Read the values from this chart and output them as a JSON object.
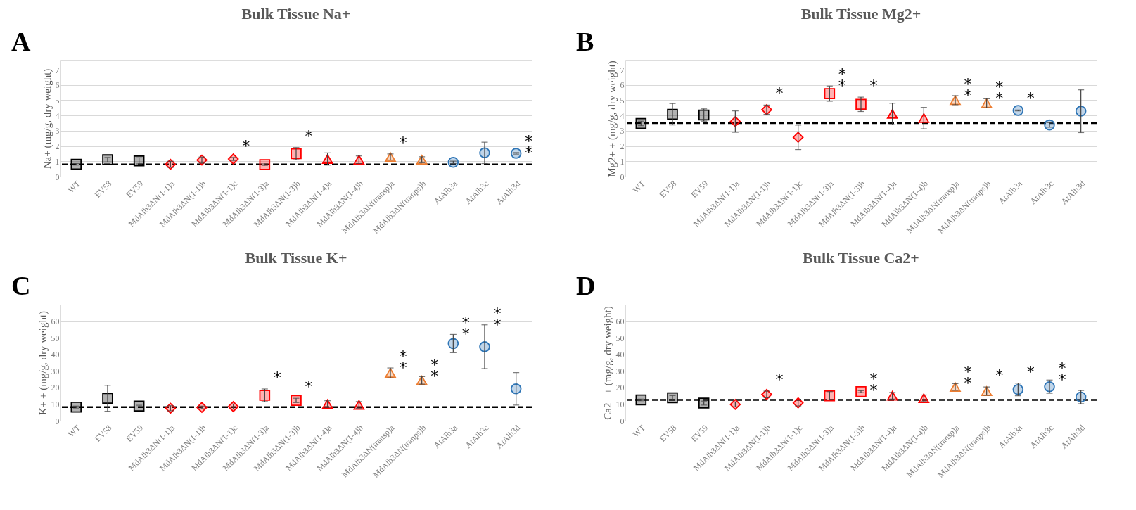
{
  "chart_data": [
    {
      "type": "scatter",
      "title": "Bulk Tissue Na+",
      "ylabel": "Na+ (mg/g, dry weight)",
      "categories": [
        "WT",
        "EV58",
        "EV59",
        "MdAlb3ΔN(1-1)a",
        "MdAlb3ΔN(1-1)b",
        "MdAlb3ΔN(1-1)c",
        "MdAlb3ΔN(1-3)a",
        "MdAlb3ΔN(1-3)b",
        "MdAlb3ΔN(1-4)a",
        "MdAlb3ΔN(1-4)b",
        "MdAlb3ΔN(transp)a",
        "MdAlb3ΔN(tranps)b",
        "AtAlb3a",
        "AtAlb3c",
        "AtAlb3d"
      ],
      "series": [
        {
          "color": "#000000",
          "marker": "square",
          "values": [
            0.8,
            1.1,
            1.03,
            null,
            null,
            null,
            null,
            null,
            null,
            null,
            null,
            null,
            null,
            null,
            null
          ],
          "errors": [
            0.05,
            0.15,
            0.2,
            null,
            null,
            null,
            null,
            null,
            null,
            null,
            null,
            null,
            null,
            null,
            null
          ]
        },
        {
          "color": "#ff0000",
          "marker": "diamond",
          "values": [
            null,
            null,
            null,
            0.8,
            1.08,
            1.15,
            null,
            null,
            null,
            null,
            null,
            null,
            null,
            null,
            null
          ],
          "errors": [
            null,
            null,
            null,
            0.2,
            0.2,
            0.1,
            null,
            null,
            null,
            null,
            null,
            null,
            null,
            null,
            null
          ],
          "value_labels": [
            null,
            null,
            null,
            null,
            null,
            "*",
            null,
            null,
            null,
            null,
            null,
            null,
            null,
            null,
            null
          ]
        },
        {
          "color": "#ff0000",
          "marker": "square",
          "values": [
            null,
            null,
            null,
            null,
            null,
            null,
            0.78,
            1.5,
            null,
            null,
            null,
            null,
            null,
            null,
            null
          ],
          "errors": [
            null,
            null,
            null,
            null,
            null,
            null,
            0.05,
            0.4,
            null,
            null,
            null,
            null,
            null,
            null,
            null
          ],
          "value_labels": [
            null,
            null,
            null,
            null,
            null,
            null,
            null,
            "*",
            null,
            null,
            null,
            null,
            null,
            null,
            null
          ]
        },
        {
          "color": "#ff0000",
          "marker": "triangle",
          "values": [
            null,
            null,
            null,
            null,
            null,
            null,
            null,
            null,
            1.15,
            1.1,
            null,
            null,
            null,
            null,
            null
          ],
          "errors": [
            null,
            null,
            null,
            null,
            null,
            null,
            null,
            null,
            0.4,
            0.25,
            null,
            null,
            null,
            null,
            null
          ]
        },
        {
          "color": "#ed7d31",
          "marker": "triangle",
          "values": [
            null,
            null,
            null,
            null,
            null,
            null,
            null,
            null,
            null,
            null,
            1.28,
            1.1,
            null,
            null,
            null
          ],
          "errors": [
            null,
            null,
            null,
            null,
            null,
            null,
            null,
            null,
            null,
            null,
            0.2,
            0.2,
            null,
            null,
            null
          ],
          "value_labels": [
            null,
            null,
            null,
            null,
            null,
            null,
            null,
            null,
            null,
            null,
            "*",
            null,
            null,
            null,
            null
          ]
        },
        {
          "color": "#2e75b6",
          "marker": "circle",
          "values": [
            null,
            null,
            null,
            null,
            null,
            null,
            null,
            null,
            null,
            null,
            null,
            null,
            0.93,
            1.55,
            1.52
          ],
          "errors": [
            null,
            null,
            null,
            null,
            null,
            null,
            null,
            null,
            null,
            null,
            null,
            null,
            0.08,
            0.7,
            0.05
          ],
          "value_labels": [
            null,
            null,
            null,
            null,
            null,
            null,
            null,
            null,
            null,
            null,
            null,
            null,
            null,
            null,
            "*\n*"
          ]
        }
      ],
      "ylim": [
        0,
        7.6
      ],
      "yticks": [
        0,
        1,
        2,
        3,
        4,
        5,
        6,
        7
      ],
      "grid": "y",
      "legend": false,
      "ref_lines": [
        {
          "axis": "y",
          "value": 0.8,
          "line_style": "dashed",
          "color": "#000000"
        }
      ],
      "annotations": [
        "A"
      ]
    },
    {
      "type": "scatter",
      "title": "Bulk Tissue Mg2+",
      "ylabel": "Mg2+ + (mg/g, dry weight)",
      "categories": [
        "WT",
        "EV58",
        "EV59",
        "MdAlb3ΔN(1-1)a",
        "MdAlb3ΔN(1-1)b",
        "MdAlb3ΔN(1-1)c",
        "MdAlb3ΔN(1-3)a",
        "MdAlb3ΔN(1-3)b",
        "MdAlb3ΔN(1-4)a",
        "MdAlb3ΔN(1-4)b",
        "MdAlb3ΔN(transp)a",
        "MdAlb3ΔN(tranps)b",
        "AtAlb3a",
        "AtAlb3c",
        "AtAlb3d"
      ],
      "series": [
        {
          "color": "#000000",
          "marker": "square",
          "values": [
            3.48,
            4.08,
            4.03,
            null,
            null,
            null,
            null,
            null,
            null,
            null,
            null,
            null,
            null,
            null,
            null
          ],
          "errors": [
            0.15,
            0.7,
            0.4,
            null,
            null,
            null,
            null,
            null,
            null,
            null,
            null,
            null,
            null,
            null,
            null
          ]
        },
        {
          "color": "#ff0000",
          "marker": "diamond",
          "values": [
            null,
            null,
            null,
            3.6,
            4.38,
            2.57,
            null,
            null,
            null,
            null,
            null,
            null,
            null,
            null,
            null
          ],
          "errors": [
            null,
            null,
            null,
            0.7,
            0.3,
            0.8,
            null,
            null,
            null,
            null,
            null,
            null,
            null,
            null,
            null
          ],
          "value_labels": [
            null,
            null,
            null,
            null,
            "*",
            null,
            null,
            null,
            null,
            null,
            null,
            null,
            null,
            null,
            null
          ]
        },
        {
          "color": "#ff0000",
          "marker": "square",
          "values": [
            null,
            null,
            null,
            null,
            null,
            null,
            5.43,
            4.73,
            null,
            null,
            null,
            null,
            null,
            null,
            null
          ],
          "errors": [
            null,
            null,
            null,
            null,
            null,
            null,
            0.5,
            0.47,
            null,
            null,
            null,
            null,
            null,
            null,
            null
          ],
          "value_labels": [
            null,
            null,
            null,
            null,
            null,
            null,
            "*\n*",
            "*",
            null,
            null,
            null,
            null,
            null,
            null,
            null
          ]
        },
        {
          "color": "#ff0000",
          "marker": "triangle",
          "values": [
            null,
            null,
            null,
            null,
            null,
            null,
            null,
            null,
            4.1,
            3.83,
            null,
            null,
            null,
            null,
            null
          ],
          "errors": [
            null,
            null,
            null,
            null,
            null,
            null,
            null,
            null,
            0.7,
            0.7,
            null,
            null,
            null,
            null,
            null
          ]
        },
        {
          "color": "#ed7d31",
          "marker": "triangle",
          "values": [
            null,
            null,
            null,
            null,
            null,
            null,
            null,
            null,
            null,
            null,
            5.0,
            4.8,
            null,
            null,
            null
          ],
          "errors": [
            null,
            null,
            null,
            null,
            null,
            null,
            null,
            null,
            null,
            null,
            0.3,
            0.3,
            null,
            null,
            null
          ],
          "value_labels": [
            null,
            null,
            null,
            null,
            null,
            null,
            null,
            null,
            null,
            null,
            "*\n*",
            "*\n*",
            null,
            null,
            null
          ]
        },
        {
          "color": "#2e75b6",
          "marker": "circle",
          "values": [
            null,
            null,
            null,
            null,
            null,
            null,
            null,
            null,
            null,
            null,
            null,
            null,
            4.33,
            3.38,
            4.28
          ],
          "errors": [
            null,
            null,
            null,
            null,
            null,
            null,
            null,
            null,
            null,
            null,
            null,
            null,
            0.03,
            0.15,
            1.4
          ],
          "value_labels": [
            null,
            null,
            null,
            null,
            null,
            null,
            null,
            null,
            null,
            null,
            null,
            null,
            "*",
            null,
            null
          ]
        }
      ],
      "ylim": [
        0,
        7.6
      ],
      "yticks": [
        0,
        1,
        2,
        3,
        4,
        5,
        6,
        7
      ],
      "grid": "y",
      "legend": false,
      "ref_lines": [
        {
          "axis": "y",
          "value": 3.5,
          "line_style": "dashed",
          "color": "#000000"
        }
      ],
      "annotations": [
        "B"
      ]
    },
    {
      "type": "scatter",
      "title": "Bulk Tissue K+",
      "ylabel": "K+ + (mg/g, dry weight)",
      "categories": [
        "WT",
        "EV58",
        "EV59",
        "MdAlb3ΔN(1-1)a",
        "MdAlb3ΔN(1-1)b",
        "MdAlb3ΔN(1-1)c",
        "MdAlb3ΔN(1-3)a",
        "MdAlb3ΔN(1-3)b",
        "MdAlb3ΔN(1-4)a",
        "MdAlb3ΔN(1-4)b",
        "MdAlb3ΔN(transp)a",
        "MdAlb3ΔN(tranps)b",
        "AtAlb3a",
        "AtAlb3c",
        "AtAlb3d"
      ],
      "series": [
        {
          "color": "#000000",
          "marker": "square",
          "values": [
            8.2,
            13.5,
            8.8,
            null,
            null,
            null,
            null,
            null,
            null,
            null,
            null,
            null,
            null,
            null,
            null
          ],
          "errors": [
            0.6,
            7.8,
            0.5,
            null,
            null,
            null,
            null,
            null,
            null,
            null,
            null,
            null,
            null,
            null,
            null
          ]
        },
        {
          "color": "#ff0000",
          "marker": "diamond",
          "values": [
            null,
            null,
            null,
            7.5,
            8.0,
            8.5,
            null,
            null,
            null,
            null,
            null,
            null,
            null,
            null,
            null
          ],
          "errors": [
            null,
            null,
            null,
            1.5,
            0.8,
            1.5,
            null,
            null,
            null,
            null,
            null,
            null,
            null,
            null,
            null
          ]
        },
        {
          "color": "#ff0000",
          "marker": "square",
          "values": [
            null,
            null,
            null,
            null,
            null,
            null,
            15.3,
            12.2,
            null,
            null,
            null,
            null,
            null,
            null,
            null
          ],
          "errors": [
            null,
            null,
            null,
            null,
            null,
            null,
            3.8,
            1.3,
            null,
            null,
            null,
            null,
            null,
            null,
            null
          ],
          "value_labels": [
            null,
            null,
            null,
            null,
            null,
            null,
            "*",
            "*",
            null,
            null,
            null,
            null,
            null,
            null,
            null
          ]
        },
        {
          "color": "#ff0000",
          "marker": "triangle",
          "values": [
            null,
            null,
            null,
            null,
            null,
            null,
            null,
            null,
            10,
            9.5,
            null,
            null,
            null,
            null,
            null
          ],
          "errors": [
            null,
            null,
            null,
            null,
            null,
            null,
            null,
            null,
            2,
            2,
            null,
            null,
            null,
            null,
            null
          ]
        },
        {
          "color": "#ed7d31",
          "marker": "triangle",
          "values": [
            null,
            null,
            null,
            null,
            null,
            null,
            null,
            null,
            null,
            null,
            28.8,
            24.3,
            null,
            null,
            null
          ],
          "errors": [
            null,
            null,
            null,
            null,
            null,
            null,
            null,
            null,
            null,
            null,
            3,
            2.3,
            null,
            null,
            null
          ],
          "value_labels": [
            null,
            null,
            null,
            null,
            null,
            null,
            null,
            null,
            null,
            null,
            "*\n*",
            "*\n*",
            null,
            null,
            null
          ]
        },
        {
          "color": "#2e75b6",
          "marker": "circle",
          "values": [
            null,
            null,
            null,
            null,
            null,
            null,
            null,
            null,
            null,
            null,
            null,
            null,
            46.5,
            44.6,
            19.2
          ],
          "errors": [
            null,
            null,
            null,
            null,
            null,
            null,
            null,
            null,
            null,
            null,
            null,
            null,
            5.5,
            13.2,
            9.8
          ],
          "value_labels": [
            null,
            null,
            null,
            null,
            null,
            null,
            null,
            null,
            null,
            null,
            null,
            null,
            "*\n*",
            "*\n*",
            null
          ]
        }
      ],
      "ylim": [
        0,
        70
      ],
      "yticks": [
        0,
        10,
        20,
        30,
        40,
        50,
        60
      ],
      "grid": "y",
      "legend": false,
      "ref_lines": [
        {
          "axis": "y",
          "value": 8.2,
          "line_style": "dashed",
          "color": "#000000"
        }
      ],
      "annotations": [
        "C"
      ]
    },
    {
      "type": "scatter",
      "title": "Bulk Tissue Ca2+",
      "ylabel": "Ca2+ + (mg/g, dry weight)",
      "categories": [
        "WT",
        "EV58",
        "EV59",
        "MdAlb3ΔN(1-1)a",
        "MdAlb3ΔN(1-1)b",
        "MdAlb3ΔN(1-1)c",
        "MdAlb3ΔN(1-3)a",
        "MdAlb3ΔN(1-3)b",
        "MdAlb3ΔN(1-4)a",
        "MdAlb3ΔN(1-4)b",
        "MdAlb3ΔN(transp)a",
        "MdAlb3ΔN(tranps)b",
        "AtAlb3a",
        "AtAlb3c",
        "AtAlb3d"
      ],
      "series": [
        {
          "color": "#000000",
          "marker": "square",
          "values": [
            12.5,
            13.8,
            10.6,
            null,
            null,
            null,
            null,
            null,
            null,
            null,
            null,
            null,
            null,
            null,
            null
          ],
          "errors": [
            0.5,
            1.3,
            1.2,
            null,
            null,
            null,
            null,
            null,
            null,
            null,
            null,
            null,
            null,
            null,
            null
          ]
        },
        {
          "color": "#ff0000",
          "marker": "diamond",
          "values": [
            null,
            null,
            null,
            9.8,
            15.8,
            10.7,
            null,
            null,
            null,
            null,
            null,
            null,
            null,
            null,
            null
          ],
          "errors": [
            null,
            null,
            null,
            1.5,
            2,
            1.8,
            null,
            null,
            null,
            null,
            null,
            null,
            null,
            null,
            null
          ],
          "value_labels": [
            null,
            null,
            null,
            null,
            "*",
            null,
            null,
            null,
            null,
            null,
            null,
            null,
            null,
            null,
            null
          ]
        },
        {
          "color": "#ff0000",
          "marker": "square",
          "values": [
            null,
            null,
            null,
            null,
            null,
            null,
            15,
            17.5,
            null,
            null,
            null,
            null,
            null,
            null,
            null
          ],
          "errors": [
            null,
            null,
            null,
            null,
            null,
            null,
            2.5,
            0.6,
            null,
            null,
            null,
            null,
            null,
            null,
            null
          ],
          "value_labels": [
            null,
            null,
            null,
            null,
            null,
            null,
            null,
            "*\n*",
            null,
            null,
            null,
            null,
            null,
            null,
            null
          ]
        },
        {
          "color": "#ff0000",
          "marker": "triangle",
          "values": [
            null,
            null,
            null,
            null,
            null,
            null,
            null,
            null,
            15,
            13.5,
            null,
            null,
            null,
            null,
            null
          ],
          "errors": [
            null,
            null,
            null,
            null,
            null,
            null,
            null,
            null,
            2,
            2,
            null,
            null,
            null,
            null,
            null
          ]
        },
        {
          "color": "#ed7d31",
          "marker": "triangle",
          "values": [
            null,
            null,
            null,
            null,
            null,
            null,
            null,
            null,
            null,
            null,
            20.3,
            17.8,
            null,
            null,
            null
          ],
          "errors": [
            null,
            null,
            null,
            null,
            null,
            null,
            null,
            null,
            null,
            null,
            2,
            2.5,
            null,
            null,
            null
          ],
          "value_labels": [
            null,
            null,
            null,
            null,
            null,
            null,
            null,
            null,
            null,
            null,
            "*\n*",
            "*",
            null,
            null,
            null
          ]
        },
        {
          "color": "#2e75b6",
          "marker": "circle",
          "values": [
            null,
            null,
            null,
            null,
            null,
            null,
            null,
            null,
            null,
            null,
            null,
            null,
            18.8,
            20.5,
            14.2
          ],
          "errors": [
            null,
            null,
            null,
            null,
            null,
            null,
            null,
            null,
            null,
            null,
            null,
            null,
            3.8,
            4,
            4
          ],
          "value_labels": [
            null,
            null,
            null,
            null,
            null,
            null,
            null,
            null,
            null,
            null,
            null,
            null,
            "*",
            "*\n*",
            null
          ]
        }
      ],
      "ylim": [
        0,
        70
      ],
      "yticks": [
        0,
        10,
        20,
        30,
        40,
        50,
        60
      ],
      "grid": "y",
      "legend": false,
      "ref_lines": [
        {
          "axis": "y",
          "value": 12.5,
          "line_style": "dashed",
          "color": "#000000"
        }
      ],
      "annotations": [
        "D"
      ]
    }
  ]
}
